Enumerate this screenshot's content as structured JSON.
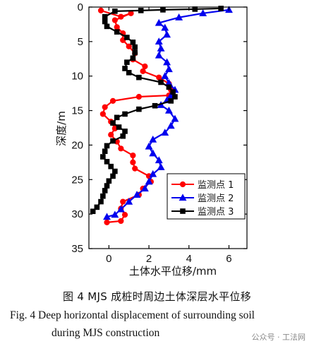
{
  "chart_data": {
    "type": "line",
    "xlabel": "土体水平位移/mm",
    "ylabel": "深度/m",
    "xlim": [
      -1,
      6.9
    ],
    "ylim": [
      35,
      0
    ],
    "xticks": [
      0,
      2,
      4,
      6
    ],
    "yticks": [
      0,
      5,
      10,
      15,
      20,
      25,
      30,
      35
    ],
    "legend_position": "bottom-right",
    "series": [
      {
        "name": "监测点 1",
        "color": "#ff0000",
        "marker": "circle",
        "points": [
          [
            -0.4,
            0.5
          ],
          [
            0.6,
            1.4
          ],
          [
            1.1,
            0.9
          ],
          [
            0.3,
            1.9
          ],
          [
            0.4,
            2.9
          ],
          [
            0.7,
            3.8
          ],
          [
            0.7,
            4.8
          ],
          [
            1.0,
            5.7
          ],
          [
            1.3,
            6.7
          ],
          [
            1.2,
            7.6
          ],
          [
            1.8,
            8.6
          ],
          [
            1.7,
            9.3
          ],
          [
            2.5,
            10.2
          ],
          [
            3.0,
            11.1
          ],
          [
            3.1,
            12.0
          ],
          [
            3.0,
            12.8
          ],
          [
            1.5,
            13.0
          ],
          [
            0.2,
            13.6
          ],
          [
            -0.2,
            14.5
          ],
          [
            -0.3,
            15.5
          ],
          [
            0.1,
            16.6
          ],
          [
            0.3,
            17.6
          ],
          [
            0.1,
            18.5
          ],
          [
            0.4,
            19.5
          ],
          [
            0.6,
            20.5
          ],
          [
            1.2,
            21.5
          ],
          [
            1.2,
            22.5
          ],
          [
            1.3,
            23.4
          ],
          [
            2.0,
            24.5
          ],
          [
            2.1,
            25.3
          ],
          [
            1.7,
            26.3
          ],
          [
            1.5,
            27.2
          ],
          [
            0.7,
            28.2
          ],
          [
            0.6,
            29.2
          ],
          [
            0.8,
            30.1
          ],
          [
            0.6,
            31.0
          ],
          [
            -0.1,
            31.2
          ]
        ]
      },
      {
        "name": "监测点 2",
        "color": "#0000ee",
        "marker": "triangle",
        "points": [
          [
            6.0,
            0.4
          ],
          [
            4.7,
            0.9
          ],
          [
            3.5,
            1.5
          ],
          [
            2.5,
            2.3
          ],
          [
            2.8,
            3.0
          ],
          [
            2.9,
            4.0
          ],
          [
            2.5,
            5.0
          ],
          [
            2.6,
            6.0
          ],
          [
            2.5,
            7.0
          ],
          [
            2.9,
            8.0
          ],
          [
            3.0,
            9.0
          ],
          [
            2.8,
            10.0
          ],
          [
            3.0,
            11.0
          ],
          [
            3.3,
            12.0
          ],
          [
            3.1,
            12.8
          ],
          [
            2.9,
            13.5
          ],
          [
            2.6,
            14.2
          ],
          [
            3.0,
            15.0
          ],
          [
            3.3,
            16.2
          ],
          [
            3.1,
            17.2
          ],
          [
            2.8,
            18.2
          ],
          [
            2.2,
            19.2
          ],
          [
            2.0,
            20.2
          ],
          [
            2.2,
            21.2
          ],
          [
            2.5,
            22.2
          ],
          [
            2.6,
            23.2
          ],
          [
            2.2,
            24.2
          ],
          [
            2.0,
            25.3
          ],
          [
            1.8,
            26.3
          ],
          [
            1.4,
            27.2
          ],
          [
            1.0,
            28.2
          ],
          [
            0.6,
            29.3
          ],
          [
            0.3,
            30.1
          ],
          [
            -0.1,
            30.4
          ]
        ]
      },
      {
        "name": "监测点 3",
        "color": "#000000",
        "marker": "square",
        "points": [
          [
            5.6,
            0.2
          ],
          [
            4.3,
            0.3
          ],
          [
            2.7,
            0.4
          ],
          [
            1.6,
            0.5
          ],
          [
            0.3,
            0.6
          ],
          [
            -0.2,
            1.4
          ],
          [
            -0.2,
            2.1
          ],
          [
            -0.1,
            2.8
          ],
          [
            0.4,
            3.6
          ],
          [
            0.9,
            4.4
          ],
          [
            1.2,
            5.1
          ],
          [
            1.3,
            5.8
          ],
          [
            1.3,
            6.6
          ],
          [
            1.2,
            7.4
          ],
          [
            0.9,
            8.0
          ],
          [
            0.8,
            8.9
          ],
          [
            1.0,
            9.5
          ],
          [
            1.5,
            10.2
          ],
          [
            2.6,
            10.9
          ],
          [
            3.0,
            11.6
          ],
          [
            3.2,
            12.3
          ],
          [
            3.3,
            13.0
          ],
          [
            3.1,
            13.6
          ],
          [
            2.3,
            14.3
          ],
          [
            1.5,
            14.8
          ],
          [
            0.8,
            15.5
          ],
          [
            0.4,
            16.0
          ],
          [
            0.2,
            16.8
          ],
          [
            0.5,
            17.4
          ],
          [
            0.8,
            18.0
          ],
          [
            0.7,
            18.7
          ],
          [
            0.2,
            19.4
          ],
          [
            -0.1,
            20.1
          ],
          [
            -0.2,
            20.9
          ],
          [
            -0.3,
            21.7
          ],
          [
            -0.1,
            22.4
          ],
          [
            0.1,
            23.1
          ],
          [
            0.3,
            23.8
          ],
          [
            0.2,
            24.5
          ],
          [
            0.0,
            25.2
          ],
          [
            -0.1,
            25.9
          ],
          [
            -0.2,
            26.6
          ],
          [
            -0.3,
            27.4
          ],
          [
            -0.4,
            28.2
          ],
          [
            -0.6,
            29.0
          ],
          [
            -0.8,
            29.6
          ]
        ]
      }
    ]
  },
  "caption": {
    "cn": "图 4    MJS 成桩时周边土体深层水平位移",
    "en_line1": "Fig. 4    Deep horizontal displacement of surrounding soil",
    "en_line2": "during MJS construction"
  },
  "watermark": "公众号 · 工法网"
}
